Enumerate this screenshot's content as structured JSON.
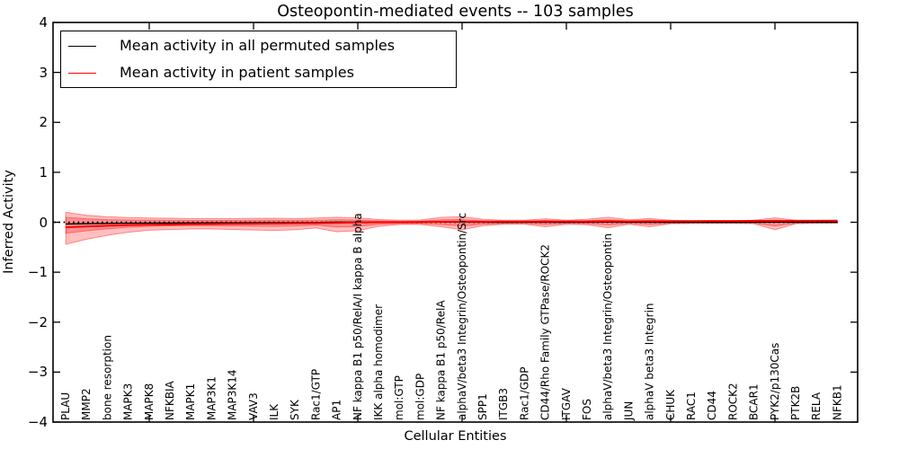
{
  "figure": {
    "title": "Osteopontin-mediated events -- 103 samples",
    "xlabel": "Cellular Entities",
    "ylabel": "Inferred Activity"
  },
  "legend": {
    "position": "upper left",
    "items": [
      {
        "label": "Mean activity in all permuted samples",
        "color": "#000000"
      },
      {
        "label": "Mean activity in patient samples",
        "color": "#ff0000"
      }
    ]
  },
  "chart_data": {
    "type": "line",
    "title": "Osteopontin-mediated events -- 103 samples",
    "xlabel": "Cellular Entities",
    "ylabel": "Inferred Activity",
    "ylim": [
      -4,
      4
    ],
    "yticks": [
      4,
      3,
      2,
      1,
      0,
      -1,
      -2,
      -3,
      -4
    ],
    "x_major_tick_indices": [
      5,
      10,
      15,
      20,
      25,
      30,
      35
    ],
    "grid": false,
    "legend_position": "upper left",
    "categories": [
      "PLAU",
      "MMP2",
      "bone resorption",
      "MAPK3",
      "MAPK8",
      "NFKBIA",
      "MAPK1",
      "MAP3K1",
      "MAP3K14",
      "VAV3",
      "ILK",
      "SYK",
      "Rac1/GTP",
      "AP1",
      "NF kappa B1 p50/RelA/I kappa B alpha",
      "IKK alpha homodimer",
      "mol:GTP",
      "mol:GDP",
      "NF kappa B1 p50/RelA",
      "alphaV/beta3 Integrin/Osteopontin/Src",
      "SPP1",
      "ITGB3",
      "Rac1/GDP",
      "CD44/Rho Family GTPase/ROCK2",
      "ITGAV",
      "FOS",
      "alphaV/beta3 Integrin/Osteopontin",
      "JUN",
      "alphaV beta3 Integrin",
      "CHUK",
      "RAC1",
      "CD44",
      "ROCK2",
      "BCAR1",
      "PYK2/p130Cas",
      "PTK2B",
      "RELA",
      "NFKB1"
    ],
    "baseline": {
      "y": 0,
      "style": "dotted",
      "color": "#000000"
    },
    "series": [
      {
        "name": "Mean activity in all permuted samples",
        "color": "#000000",
        "style": "solid",
        "values": [
          -0.035,
          -0.028,
          -0.023,
          -0.019,
          -0.016,
          -0.014,
          -0.012,
          -0.011,
          -0.01,
          -0.009,
          -0.008,
          -0.007,
          -0.005,
          0.004,
          0.002,
          0.0,
          0.0,
          0.001,
          0.004,
          0.003,
          0.001,
          0.0,
          0.001,
          0.002,
          0.0,
          0.002,
          0.004,
          0.001,
          0.002,
          0.0,
          0.0,
          0.0,
          0.0,
          0.001,
          0.003,
          0.001,
          0.0,
          0.0
        ]
      },
      {
        "name": "Mean activity in patient samples",
        "color": "#ff0000",
        "style": "solid",
        "values": [
          -0.1,
          -0.085,
          -0.07,
          -0.058,
          -0.05,
          -0.045,
          -0.04,
          -0.036,
          -0.032,
          -0.03,
          -0.026,
          -0.022,
          -0.018,
          -0.012,
          -0.006,
          0.0,
          0.002,
          0.005,
          0.01,
          0.012,
          0.012,
          0.014,
          0.015,
          0.016,
          0.016,
          0.018,
          0.02,
          0.02,
          0.022,
          0.022,
          0.024,
          0.025,
          0.026,
          0.027,
          0.028,
          0.03,
          0.03,
          0.032
        ]
      }
    ],
    "bands": [
      {
        "name": "patient activity spread (outer)",
        "color": "#ff0000",
        "opacity": 0.25,
        "upper": [
          0.2,
          0.14,
          0.11,
          0.095,
          0.085,
          0.08,
          0.075,
          0.075,
          0.075,
          0.078,
          0.08,
          0.075,
          0.085,
          0.1,
          0.09,
          0.055,
          0.04,
          0.045,
          0.1,
          0.11,
          0.06,
          0.04,
          0.04,
          0.07,
          0.04,
          0.06,
          0.1,
          0.05,
          0.075,
          0.04,
          0.03,
          0.03,
          0.03,
          0.04,
          0.09,
          0.04,
          0.03,
          0.03
        ],
        "lower": [
          -0.44,
          -0.34,
          -0.26,
          -0.2,
          -0.16,
          -0.145,
          -0.135,
          -0.135,
          -0.145,
          -0.155,
          -0.165,
          -0.15,
          -0.115,
          -0.19,
          -0.17,
          -0.08,
          -0.045,
          -0.045,
          -0.09,
          -0.15,
          -0.07,
          -0.04,
          -0.04,
          -0.09,
          -0.04,
          -0.05,
          -0.11,
          -0.04,
          -0.09,
          -0.03,
          -0.025,
          -0.025,
          -0.025,
          -0.03,
          -0.15,
          -0.03,
          -0.02,
          -0.02
        ]
      },
      {
        "name": "patient activity spread (inner)",
        "color": "#ff0000",
        "opacity": 0.25,
        "upper": [
          0.1,
          0.07,
          0.052,
          0.045,
          0.04,
          0.038,
          0.036,
          0.036,
          0.036,
          0.038,
          0.04,
          0.036,
          0.04,
          0.05,
          0.045,
          0.028,
          0.02,
          0.022,
          0.05,
          0.055,
          0.03,
          0.02,
          0.02,
          0.035,
          0.02,
          0.03,
          0.05,
          0.025,
          0.038,
          0.02,
          0.015,
          0.015,
          0.015,
          0.02,
          0.045,
          0.02,
          0.015,
          0.015
        ],
        "lower": [
          -0.22,
          -0.17,
          -0.13,
          -0.1,
          -0.08,
          -0.072,
          -0.068,
          -0.068,
          -0.072,
          -0.078,
          -0.082,
          -0.075,
          -0.058,
          -0.095,
          -0.085,
          -0.04,
          -0.022,
          -0.022,
          -0.045,
          -0.075,
          -0.035,
          -0.02,
          -0.02,
          -0.045,
          -0.02,
          -0.025,
          -0.055,
          -0.02,
          -0.045,
          -0.015,
          -0.012,
          -0.012,
          -0.012,
          -0.015,
          -0.075,
          -0.015,
          -0.01,
          -0.01
        ]
      }
    ]
  }
}
